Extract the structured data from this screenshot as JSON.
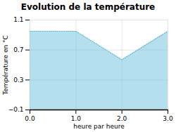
{
  "chart_data": {
    "type": "area",
    "title": "Evolution de la température",
    "x_label": "heure par heure",
    "y_label": "Température en °C",
    "x": [
      0,
      1,
      2,
      3
    ],
    "values": [
      0.95,
      0.95,
      0.57,
      0.95
    ],
    "color": "#5bb8d4",
    "line_style": "dotted",
    "xlim": [
      0,
      3
    ],
    "xticks": [
      0,
      1,
      2,
      3
    ],
    "ylim": [
      -0.1,
      1.1
    ],
    "yticks": [
      -0.1,
      0.3,
      0.7,
      1.1
    ],
    "grid": true
  }
}
